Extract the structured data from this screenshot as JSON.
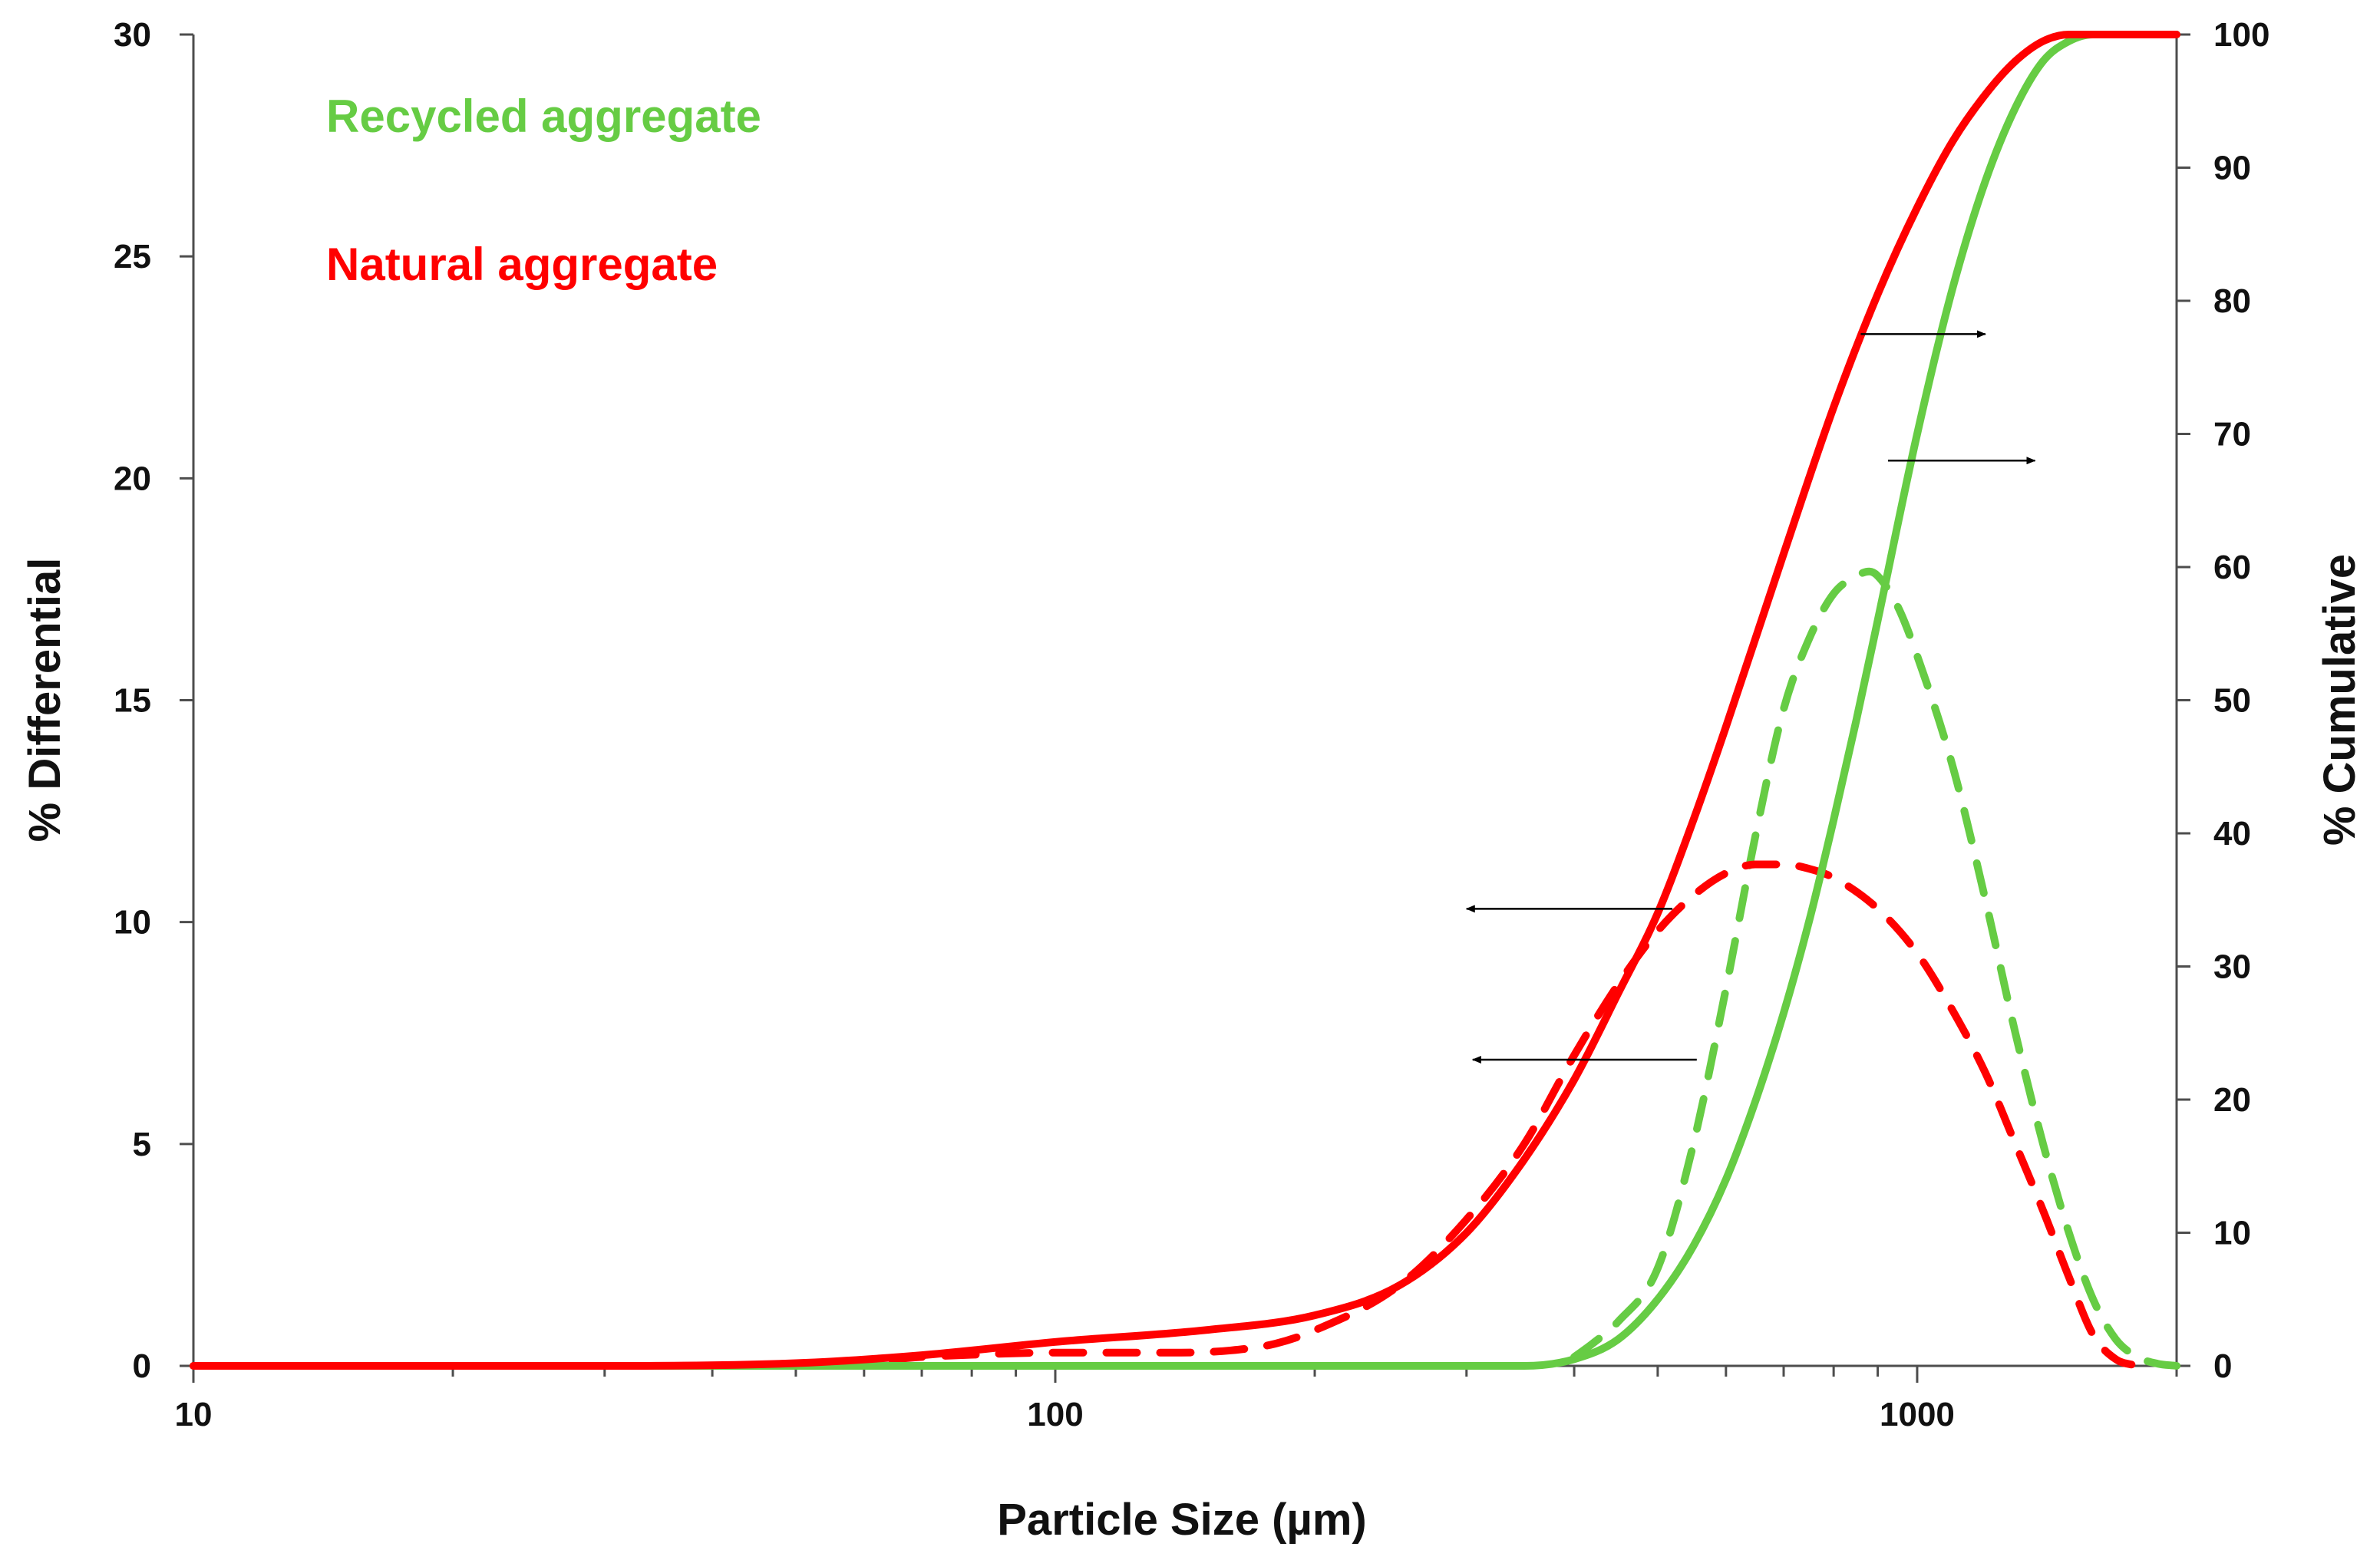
{
  "chart_data": {
    "type": "line",
    "title": "",
    "xlabel": "Particle Size (µm)",
    "ylabel_left": "% Differential",
    "ylabel_right": "% Cumulative",
    "x_scale": "log",
    "xlim": [
      10,
      2000
    ],
    "ylim_left": [
      0,
      30
    ],
    "ylim_right": [
      0,
      100
    ],
    "x_tick_labels": [
      "10",
      "100",
      "1000"
    ],
    "x_tick_values": [
      10,
      100,
      1000
    ],
    "y_left_tick_values": [
      0,
      5,
      10,
      15,
      20,
      25,
      30
    ],
    "y_left_tick_labels": [
      "0",
      "5",
      "10",
      "15",
      "20",
      "25",
      "30"
    ],
    "y_right_tick_values": [
      0,
      10,
      20,
      30,
      40,
      50,
      60,
      70,
      80,
      90,
      100
    ],
    "y_right_tick_labels": [
      "0",
      "10",
      "20",
      "30",
      "40",
      "50",
      "60",
      "70",
      "80",
      "90",
      "100"
    ],
    "grid": false,
    "legend": [
      {
        "label": "Recycled aggregate",
        "color": "#66cc44"
      },
      {
        "label": "Natural aggregate",
        "color": "#ff0000"
      }
    ],
    "series": [
      {
        "name": "Recycled aggregate cumulative",
        "axis": "right",
        "style": "solid",
        "color": "#66cc44",
        "x": [
          10,
          50,
          100,
          200,
          350,
          400,
          450,
          500,
          550,
          600,
          650,
          700,
          750,
          800,
          850,
          900,
          1000,
          1100,
          1200,
          1300,
          1400,
          1500,
          1600,
          2000
        ],
        "y": [
          0,
          0,
          0,
          0,
          0,
          0.5,
          2,
          5,
          9,
          14,
          20,
          26.5,
          33.5,
          41,
          48.5,
          56,
          70,
          81,
          89,
          94.5,
          98,
          99.5,
          100,
          100
        ]
      },
      {
        "name": "Recycled aggregate differential",
        "axis": "left",
        "style": "dashed",
        "color": "#66cc44",
        "x": [
          400,
          420,
          450,
          500,
          550,
          600,
          650,
          700,
          750,
          800,
          850,
          880,
          900,
          950,
          1000,
          1100,
          1200,
          1300,
          1400,
          1500,
          1600,
          1700,
          1800,
          1900,
          2000
        ],
        "y": [
          0.2,
          0.5,
          1,
          2.2,
          5,
          8.5,
          12,
          14.8,
          16.4,
          17.4,
          17.8,
          17.9,
          17.8,
          17.1,
          16,
          13.5,
          10.5,
          7.5,
          5,
          3,
          1.5,
          0.6,
          0.2,
          0.05,
          0
        ]
      },
      {
        "name": "Natural aggregate cumulative",
        "axis": "right",
        "style": "solid",
        "color": "#ff0000",
        "x": [
          10,
          30,
          50,
          70,
          100,
          150,
          200,
          250,
          300,
          350,
          400,
          450,
          500,
          550,
          600,
          700,
          800,
          900,
          1000,
          1100,
          1200,
          1300,
          1400,
          1500,
          2000
        ],
        "y": [
          0,
          0,
          0.2,
          0.8,
          1.8,
          2.7,
          3.8,
          6,
          10,
          15.5,
          21.5,
          28,
          34,
          41,
          48,
          61,
          72,
          80.5,
          87,
          92,
          95.5,
          98,
          99.5,
          100,
          100
        ]
      },
      {
        "name": "Natural aggregate differential",
        "axis": "left",
        "style": "dashed",
        "color": "#ff0000",
        "x": [
          10,
          50,
          60,
          70,
          80,
          100,
          120,
          140,
          160,
          180,
          200,
          250,
          300,
          350,
          400,
          450,
          500,
          550,
          600,
          650,
          700,
          750,
          800,
          900,
          1000,
          1100,
          1200,
          1300,
          1400,
          1500,
          1600,
          1700,
          1800
        ],
        "y": [
          0,
          0,
          0.1,
          0.2,
          0.25,
          0.3,
          0.3,
          0.3,
          0.35,
          0.5,
          0.8,
          1.8,
          3.3,
          5,
          7,
          8.6,
          9.8,
          10.6,
          11.1,
          11.3,
          11.3,
          11.2,
          11,
          10.3,
          9.3,
          8,
          6.6,
          5,
          3.5,
          2,
          0.7,
          0.15,
          0
        ]
      }
    ],
    "annotations": [
      {
        "type": "arrow",
        "from": {
          "x": 520,
          "axis": "left",
          "y": 10.3
        },
        "to": {
          "x": 300,
          "axis": "left",
          "y": 10.3
        }
      },
      {
        "type": "arrow",
        "from": {
          "x": 555,
          "axis": "left",
          "y": 6.9
        },
        "to": {
          "x": 305,
          "axis": "left",
          "y": 6.9
        }
      },
      {
        "type": "arrow",
        "from": {
          "x": 860,
          "axis": "right",
          "y": 77.5
        },
        "to": {
          "x": 1200,
          "axis": "right",
          "y": 77.5
        }
      },
      {
        "type": "arrow",
        "from": {
          "x": 925,
          "axis": "right",
          "y": 68
        },
        "to": {
          "x": 1370,
          "axis": "right",
          "y": 68
        }
      }
    ]
  }
}
